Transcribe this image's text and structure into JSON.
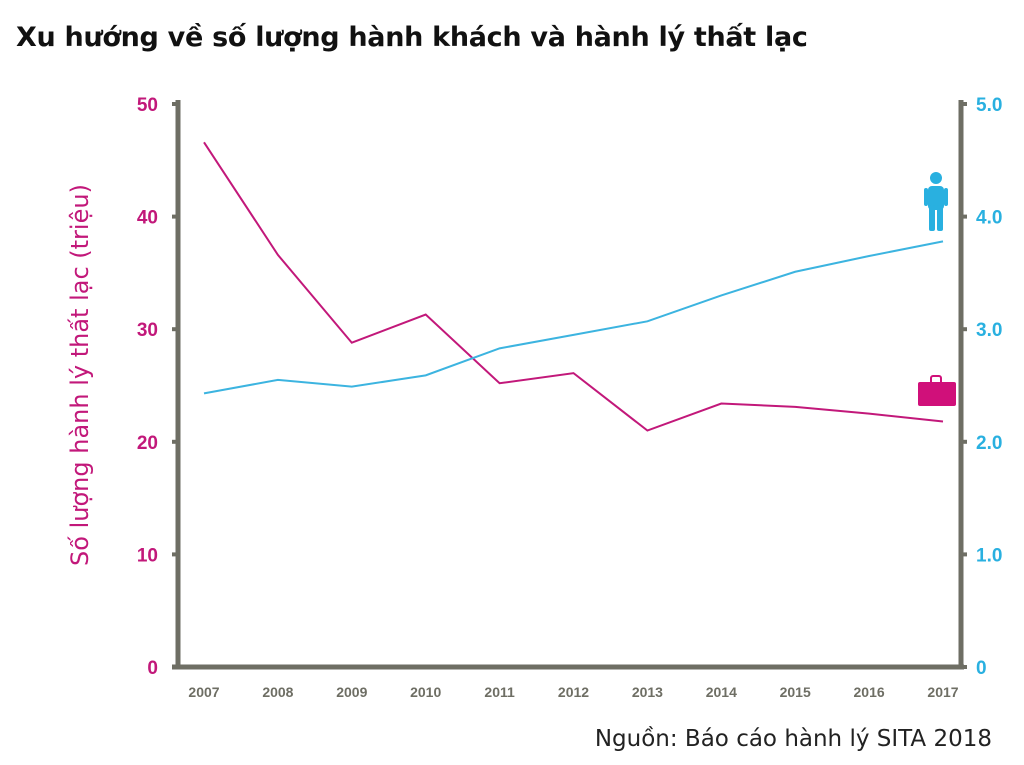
{
  "title": "Xu hướng về số lượng hành khách và hành lý thất lạc",
  "source": "Nguồn: Báo cáo hành lý SITA 2018",
  "chart_data": {
    "type": "line",
    "title": "Xu hướng về số lượng hành khách và hành lý thất lạc",
    "x": [
      "2007",
      "2008",
      "2009",
      "2010",
      "2011",
      "2012",
      "2013",
      "2014",
      "2015",
      "2016",
      "2017"
    ],
    "ylabel": "Số lượng hành lý thất lạc (triệu)",
    "ylim": [
      0,
      50
    ],
    "y_ticks": [
      "0",
      "10",
      "20",
      "30",
      "40",
      "50"
    ],
    "y2lim": [
      0,
      5
    ],
    "y2_ticks": [
      "0",
      "1.0",
      "2.0",
      "3.0",
      "4.0",
      "5.0"
    ],
    "grid": false,
    "series": [
      {
        "axis": "left",
        "color": "#c2187a",
        "icon": "suitcase-icon",
        "values": [
          46.6,
          36.6,
          28.8,
          31.3,
          25.2,
          26.1,
          21.0,
          23.4,
          23.1,
          22.5,
          21.8
        ]
      },
      {
        "axis": "right",
        "color": "#3cb4e0",
        "icon": "person-icon",
        "values": [
          2.43,
          2.55,
          2.49,
          2.59,
          2.83,
          2.95,
          3.07,
          3.3,
          3.51,
          3.65,
          3.78
        ]
      }
    ],
    "colors": {
      "axis": "#6e6e64",
      "left": "#c2187a",
      "right": "#29b0e0",
      "icon_suitcase": "#d0107a"
    }
  }
}
